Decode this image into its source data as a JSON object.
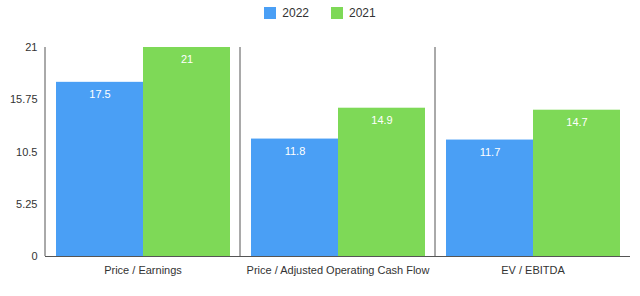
{
  "chart_data": {
    "type": "bar",
    "categories": [
      "Price / Earnings",
      "Price / Adjusted Operating Cash Flow",
      "EV / EBITDA"
    ],
    "series": [
      {
        "name": "2022",
        "color": "#4a9ff5",
        "values": [
          17.5,
          11.8,
          11.7
        ]
      },
      {
        "name": "2021",
        "color": "#7ed957",
        "values": [
          21,
          14.9,
          14.7
        ]
      }
    ],
    "ylim": [
      0,
      21
    ],
    "yticks": [
      0,
      5.25,
      10.5,
      15.75,
      21
    ],
    "grid": false,
    "legend": "top",
    "data_labels": true
  }
}
